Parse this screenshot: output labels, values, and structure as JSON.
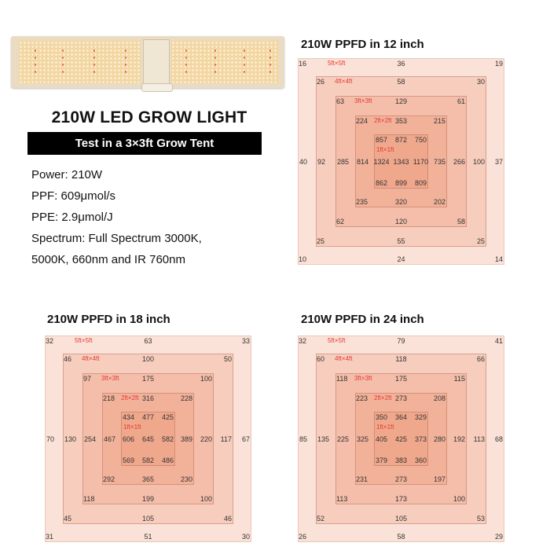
{
  "product": {
    "title": "210W LED GROW LIGHT",
    "subtitle": "Test in a 3×3ft Grow Tent",
    "specs": [
      "Power: 210W",
      "PPF: 609μmol/s",
      "PPE: 2.9μmol/J",
      "Spectrum: Full Spectrum 3000K,",
      "5000K, 660nm and IR 760nm"
    ]
  },
  "colors": {
    "label_red": "#e53935",
    "ring_fill": "#ee9474",
    "bar": "#000000"
  },
  "diagrams": [
    {
      "title": "210W PPFD in 12 inch",
      "rings": [
        {
          "label": "5ft×5ft",
          "top": [
            "16",
            "36",
            "19"
          ],
          "bottom": [
            "10",
            "24",
            "14"
          ]
        },
        {
          "label": "4ft×4ft",
          "top": [
            "26",
            "58",
            "30"
          ],
          "bottom": [
            "25",
            "55",
            "25"
          ]
        },
        {
          "label": "3ft×3ft",
          "top": [
            "63",
            "129",
            "61"
          ],
          "bottom": [
            "62",
            "120",
            "58"
          ]
        },
        {
          "label": "2ft×2ft",
          "top": [
            "224",
            "353",
            "215"
          ],
          "bottom": [
            "235",
            "320",
            "202"
          ]
        }
      ],
      "core": {
        "label": "1ft×1ft",
        "top": [
          "857",
          "872",
          "750"
        ],
        "bottom": [
          "862",
          "899",
          "809"
        ]
      },
      "middle": [
        "40",
        "92",
        "285",
        "814",
        "1324",
        "1343",
        "1170",
        "735",
        "266",
        "100",
        "37"
      ]
    },
    {
      "title": "210W PPFD in 18 inch",
      "rings": [
        {
          "label": "5ft×5ft",
          "top": [
            "32",
            "63",
            "33"
          ],
          "bottom": [
            "31",
            "51",
            "30"
          ]
        },
        {
          "label": "4ft×4ft",
          "top": [
            "46",
            "100",
            "50"
          ],
          "bottom": [
            "45",
            "105",
            "46"
          ]
        },
        {
          "label": "3ft×3ft",
          "top": [
            "97",
            "175",
            "100"
          ],
          "bottom": [
            "118",
            "199",
            "100"
          ]
        },
        {
          "label": "2ft×2ft",
          "top": [
            "218",
            "316",
            "228"
          ],
          "bottom": [
            "292",
            "365",
            "230"
          ]
        }
      ],
      "core": {
        "label": "1ft×1ft",
        "top": [
          "434",
          "477",
          "425"
        ],
        "bottom": [
          "569",
          "582",
          "486"
        ]
      },
      "middle": [
        "70",
        "130",
        "254",
        "467",
        "606",
        "645",
        "582",
        "389",
        "220",
        "117",
        "67"
      ]
    },
    {
      "title": "210W PPFD in 24 inch",
      "rings": [
        {
          "label": "5ft×5ft",
          "top": [
            "32",
            "79",
            "41"
          ],
          "bottom": [
            "26",
            "58",
            "29"
          ]
        },
        {
          "label": "4ft×4ft",
          "top": [
            "60",
            "118",
            "66"
          ],
          "bottom": [
            "52",
            "105",
            "53"
          ]
        },
        {
          "label": "3ft×3ft",
          "top": [
            "118",
            "175",
            "115"
          ],
          "bottom": [
            "113",
            "173",
            "100"
          ]
        },
        {
          "label": "2ft×2ft",
          "top": [
            "223",
            "273",
            "208"
          ],
          "bottom": [
            "231",
            "273",
            "197"
          ]
        }
      ],
      "core": {
        "label": "1ft×1ft",
        "top": [
          "350",
          "364",
          "329"
        ],
        "bottom": [
          "379",
          "383",
          "360"
        ]
      },
      "middle": [
        "85",
        "135",
        "225",
        "325",
        "405",
        "425",
        "373",
        "280",
        "192",
        "113",
        "68"
      ]
    }
  ]
}
